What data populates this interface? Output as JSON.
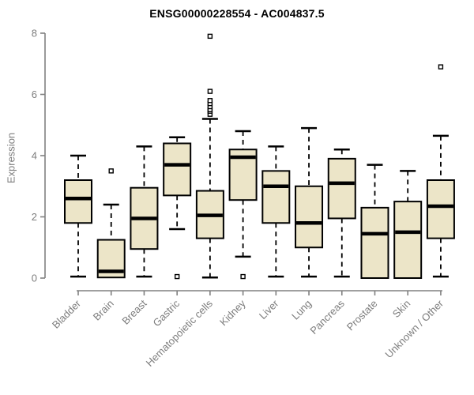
{
  "colors": {
    "background": "#ffffff",
    "box_fill": "#ece5c8",
    "box_border": "#000000",
    "median": "#000000",
    "whisker": "#000000",
    "outlier_stroke": "#000000",
    "outlier_fill": "#ffffff",
    "axis": "#808080",
    "tick_label": "#7d7d7d",
    "title": "#000000"
  },
  "chart_data": {
    "type": "box",
    "title": "ENSG00000228554 - AC004837.5",
    "xlabel": "",
    "ylabel": "Expression",
    "ylim": [
      0,
      8
    ],
    "yticks": [
      0,
      2,
      4,
      6,
      8
    ],
    "grid": false,
    "legend": false,
    "categories": [
      "Bladder",
      "Brain",
      "Breast",
      "Gastric",
      "Hematopoietic cells",
      "Kidney",
      "Liver",
      "Lung",
      "Pancreas",
      "Prostate",
      "Skin",
      "Unknown / Other"
    ],
    "boxes": [
      {
        "name": "Bladder",
        "whisker_low": 0.05,
        "q1": 1.8,
        "median": 2.6,
        "q3": 3.2,
        "whisker_high": 4.0,
        "outliers": []
      },
      {
        "name": "Brain",
        "whisker_low": 0.02,
        "q1": 0.02,
        "median": 0.22,
        "q3": 1.25,
        "whisker_high": 2.4,
        "outliers": [
          3.5
        ]
      },
      {
        "name": "Breast",
        "whisker_low": 0.05,
        "q1": 0.95,
        "median": 1.95,
        "q3": 2.95,
        "whisker_high": 4.3,
        "outliers": []
      },
      {
        "name": "Gastric",
        "whisker_low": 1.6,
        "q1": 2.7,
        "median": 3.7,
        "q3": 4.4,
        "whisker_high": 4.6,
        "outliers": [
          0.05
        ]
      },
      {
        "name": "Hematopoietic cells",
        "whisker_low": 0.02,
        "q1": 1.3,
        "median": 2.05,
        "q3": 2.85,
        "whisker_high": 5.2,
        "outliers": [
          5.35,
          5.45,
          5.5,
          5.6,
          5.7,
          5.8,
          6.1,
          7.9
        ]
      },
      {
        "name": "Kidney",
        "whisker_low": 0.7,
        "q1": 2.55,
        "median": 3.95,
        "q3": 4.2,
        "whisker_high": 4.8,
        "outliers": [
          0.05
        ]
      },
      {
        "name": "Liver",
        "whisker_low": 0.05,
        "q1": 1.8,
        "median": 3.0,
        "q3": 3.5,
        "whisker_high": 4.3,
        "outliers": []
      },
      {
        "name": "Lung",
        "whisker_low": 0.05,
        "q1": 1.0,
        "median": 1.8,
        "q3": 3.0,
        "whisker_high": 4.9,
        "outliers": []
      },
      {
        "name": "Pancreas",
        "whisker_low": 0.05,
        "q1": 1.95,
        "median": 3.1,
        "q3": 3.9,
        "whisker_high": 4.2,
        "outliers": []
      },
      {
        "name": "Prostate",
        "whisker_low": 0.0,
        "q1": 0.0,
        "median": 1.45,
        "q3": 2.3,
        "whisker_high": 3.7,
        "outliers": []
      },
      {
        "name": "Skin",
        "whisker_low": 0.0,
        "q1": 0.0,
        "median": 1.5,
        "q3": 2.5,
        "whisker_high": 3.5,
        "outliers": []
      },
      {
        "name": "Unknown / Other",
        "whisker_low": 0.05,
        "q1": 1.3,
        "median": 2.35,
        "q3": 3.2,
        "whisker_high": 4.65,
        "outliers": [
          6.9
        ]
      }
    ]
  }
}
